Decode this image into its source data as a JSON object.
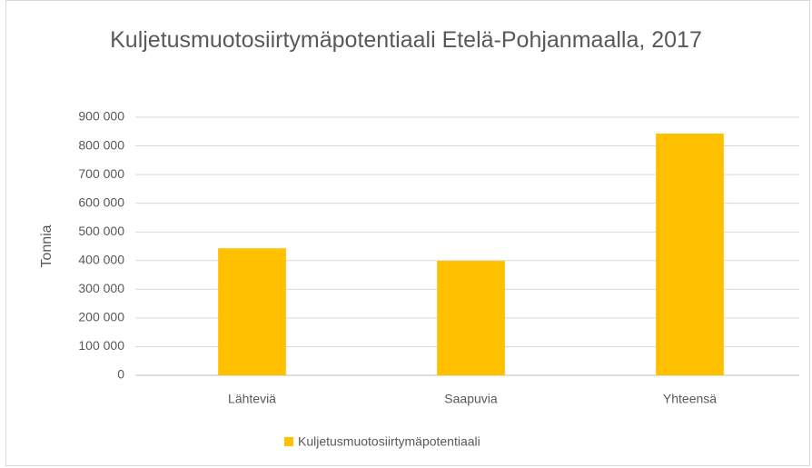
{
  "chart_data": {
    "type": "bar",
    "title": "Kuljetusmuotosiirtymäpotentiaali Etelä-Pohjanmaalla, 2017",
    "y_label": "Tonnia",
    "categories": [
      "Lähteviä",
      "Saapuvia",
      "Yhteensä"
    ],
    "series": [
      {
        "name": "Kuljetusmuotosiirtymäpotentiaali",
        "color": "#ffc000",
        "values": [
          443000,
          399000,
          843000
        ]
      }
    ],
    "ylim": [
      0,
      900000
    ],
    "yticks": [
      0,
      {
        "value": 100000,
        "label": "100 000"
      },
      {
        "value": 200000,
        "label": "200 000"
      },
      {
        "value": 300000,
        "label": "300 000"
      },
      {
        "value": 400000,
        "label": "400 000"
      },
      {
        "value": 500000,
        "label": "500 000"
      },
      {
        "value": 600000,
        "label": "600 000"
      },
      {
        "value": 700000,
        "label": "700 000"
      },
      {
        "value": 800000,
        "label": "800 000"
      },
      {
        "value": 900000,
        "label": "900 000"
      }
    ],
    "grid": true,
    "legend": "bottom"
  }
}
